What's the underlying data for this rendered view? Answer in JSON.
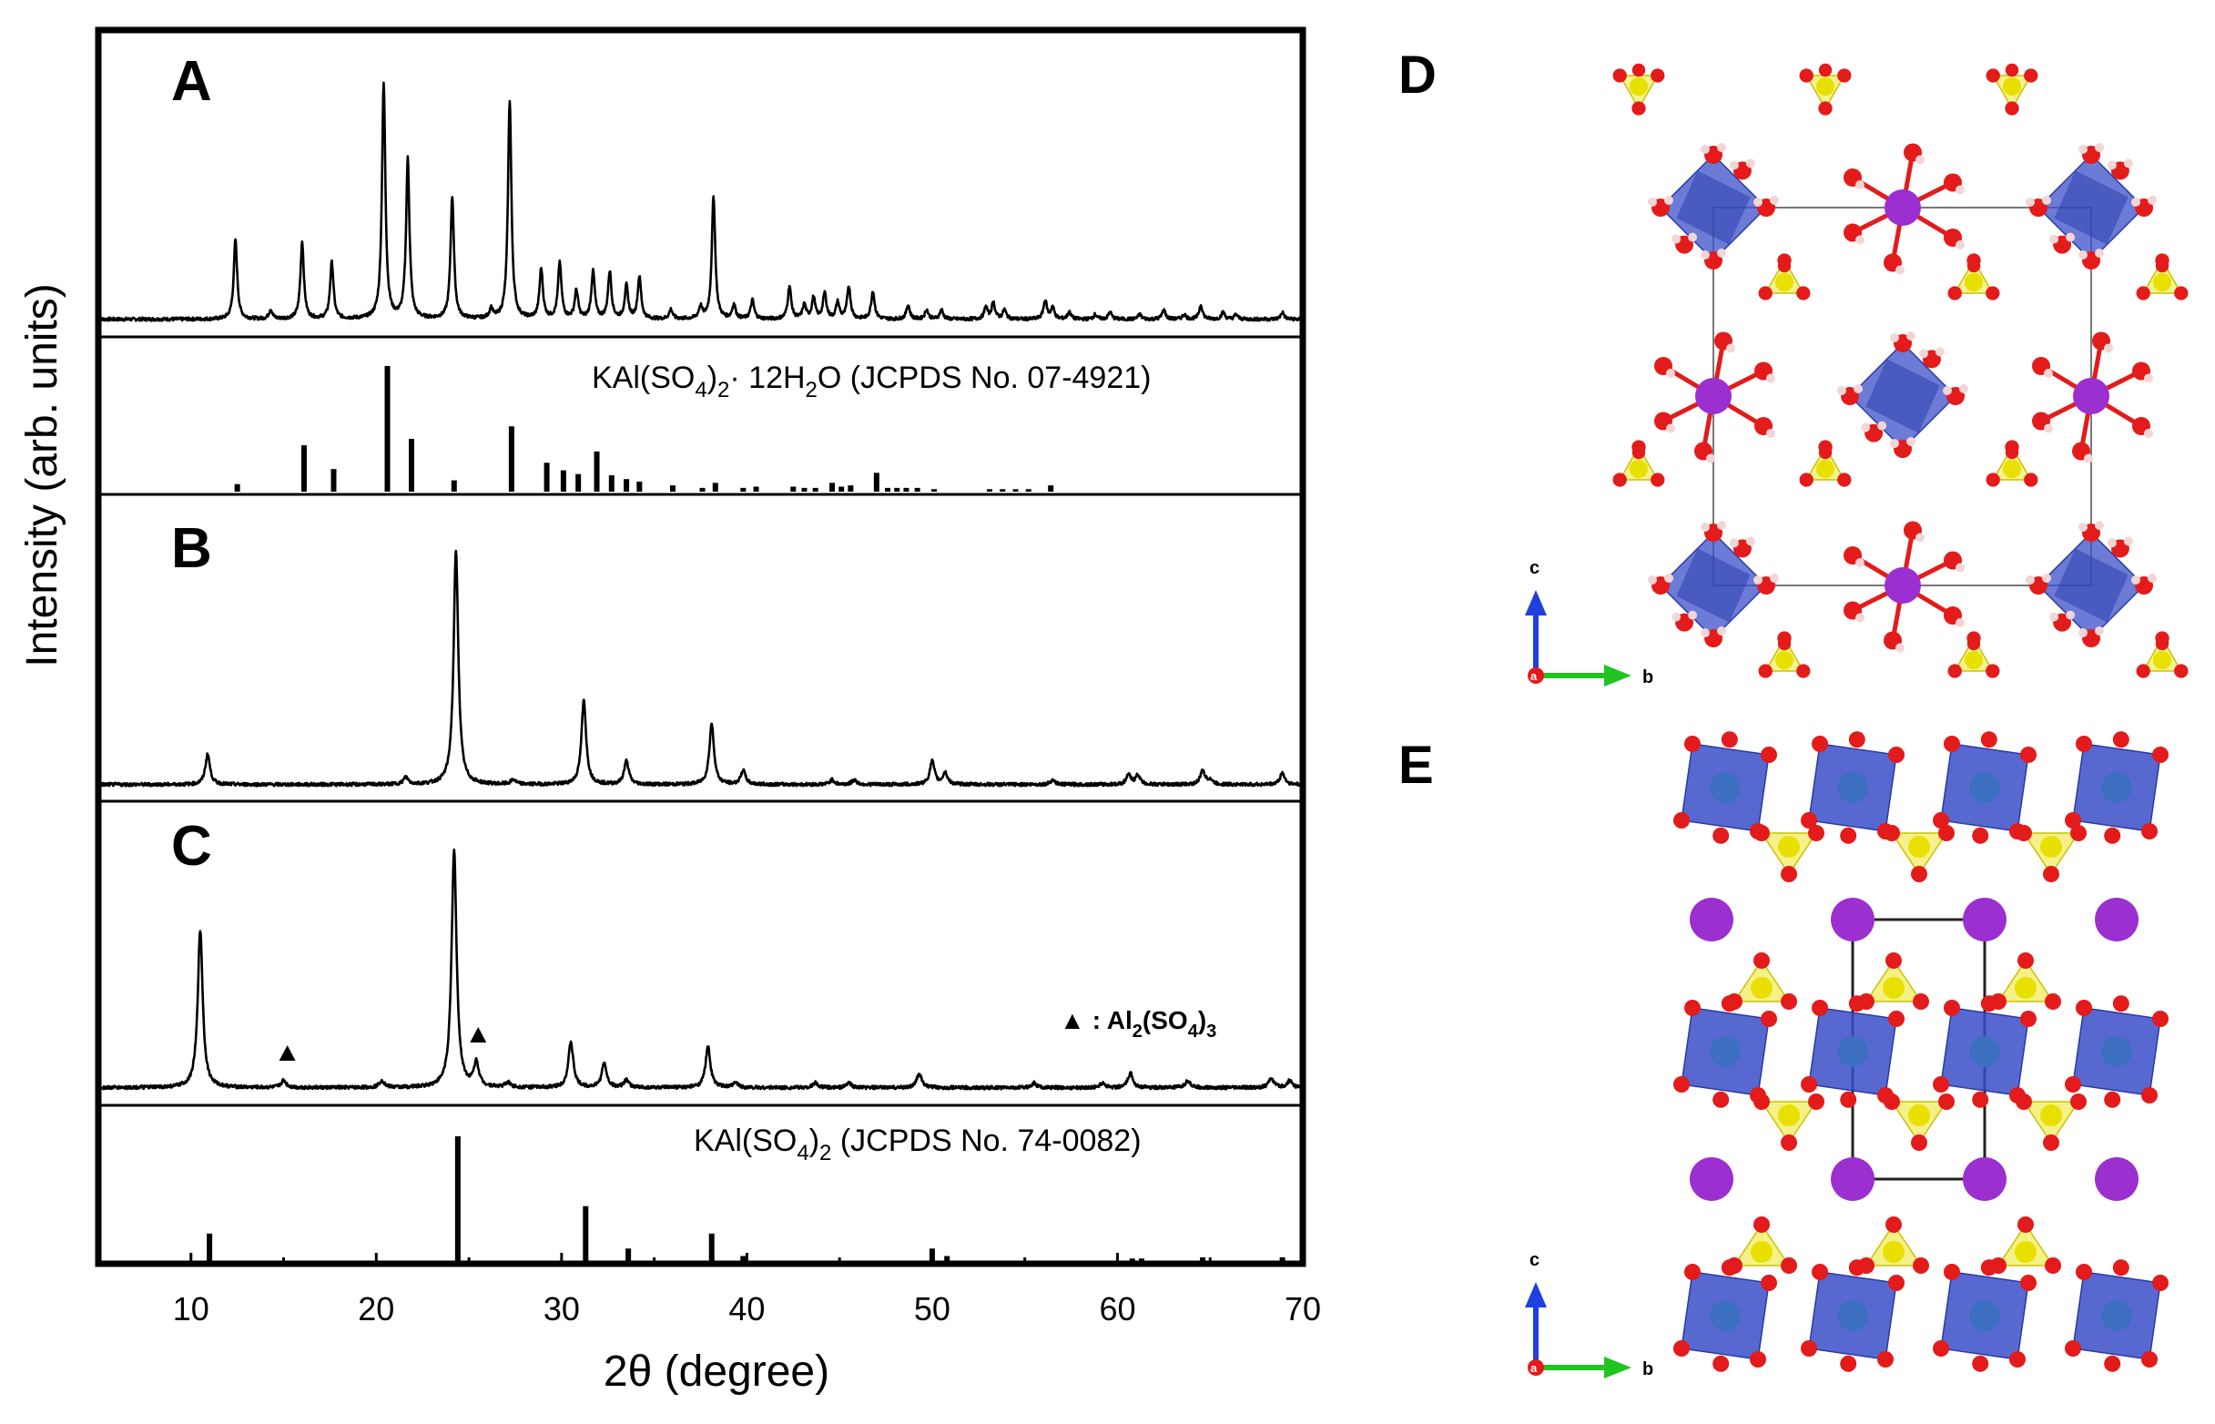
{
  "panel_letters": {
    "A": "A",
    "B": "B",
    "C": "C",
    "D": "D",
    "E": "E"
  },
  "axes": {
    "xlabel": "2θ (degree)",
    "ylabel": "Intensity (arb. units)",
    "xlim": [
      5,
      70
    ],
    "xticks": [
      "10",
      "20",
      "30",
      "40",
      "50",
      "60",
      "70"
    ]
  },
  "reference_labels": {
    "ref_A": {
      "pre": "KAl(SO",
      "sub1": "4",
      "mid": ")",
      "sub2": "2",
      "post": "·   12H",
      "sub3": "2",
      "tail": "O (JCPDS No. 07-4921)"
    },
    "ref_C": {
      "pre": "KAl(SO",
      "sub1": "4",
      "mid": ")",
      "sub2": "2",
      "tail": " (JCPDS No. 74-0082)"
    }
  },
  "impurity_legend": {
    "marker": "▲",
    "pre": ": Al",
    "sub1": "2",
    "mid": "(SO",
    "sub2": "4",
    "post": ")",
    "sub3": "3"
  },
  "axis_glyphs": {
    "c": "c",
    "b": "b",
    "a": "a"
  },
  "colors": {
    "frame": "#000000",
    "oxygen": "#e31b1b",
    "sulfur": "#e8e000",
    "tetra_fill": "#f2ee6a",
    "octa_fill": "#3a4fc8",
    "potassium": "#9b2fd0",
    "aluminum_ball": "#3d6fc0",
    "hydrogen": "#f2d6d6",
    "axis_c": "#1f3fe0",
    "axis_b": "#22c422"
  },
  "chart_data": [
    {
      "type": "line",
      "title": "A",
      "xlabel": "2θ (degree)",
      "ylabel": "Intensity (arb. units)",
      "xlim": [
        5,
        70
      ],
      "ylim": [
        0,
        100
      ],
      "series": [
        {
          "name": "A (measured)",
          "peaks": [
            [
              12.4,
              34
            ],
            [
              14.3,
              4
            ],
            [
              16.0,
              33
            ],
            [
              17.6,
              24
            ],
            [
              20.4,
              100
            ],
            [
              21.7,
              68
            ],
            [
              24.1,
              52
            ],
            [
              26.2,
              4
            ],
            [
              27.2,
              93
            ],
            [
              28.9,
              21
            ],
            [
              29.9,
              24
            ],
            [
              30.8,
              12
            ],
            [
              31.7,
              20
            ],
            [
              32.6,
              20
            ],
            [
              33.5,
              14
            ],
            [
              34.2,
              18
            ],
            [
              35.9,
              4
            ],
            [
              37.5,
              5
            ],
            [
              38.2,
              52
            ],
            [
              39.3,
              6
            ],
            [
              40.3,
              8
            ],
            [
              42.3,
              14
            ],
            [
              43.1,
              6
            ],
            [
              43.6,
              9
            ],
            [
              44.2,
              11
            ],
            [
              44.9,
              7
            ],
            [
              45.5,
              14
            ],
            [
              46.8,
              12
            ],
            [
              48.7,
              6
            ],
            [
              49.7,
              4
            ],
            [
              50.5,
              4
            ],
            [
              52.9,
              5
            ],
            [
              53.3,
              7
            ],
            [
              53.9,
              4
            ],
            [
              56.1,
              8
            ],
            [
              56.5,
              5
            ],
            [
              57.4,
              3
            ],
            [
              58.8,
              2
            ],
            [
              59.6,
              3
            ],
            [
              61.2,
              2
            ],
            [
              62.5,
              4
            ],
            [
              63.6,
              2
            ],
            [
              64.5,
              6
            ],
            [
              65.7,
              3
            ],
            [
              66.4,
              2
            ],
            [
              68.9,
              3
            ]
          ]
        }
      ]
    },
    {
      "type": "bar",
      "title": "KAl(SO4)2·12H2O (JCPDS No. 07-4921)",
      "xlim": [
        5,
        70
      ],
      "ylim": [
        0,
        100
      ],
      "series": [
        {
          "name": "JCPDS 07-4921",
          "x": [
            12.5,
            16.1,
            17.7,
            20.6,
            21.9,
            24.2,
            27.3,
            29.2,
            30.1,
            30.9,
            31.9,
            32.7,
            33.5,
            34.2,
            36.0,
            37.6,
            38.3,
            39.8,
            40.5,
            42.5,
            43.1,
            43.7,
            44.6,
            45.1,
            45.6,
            47.0,
            47.6,
            48.1,
            48.6,
            49.2,
            50.1,
            53.1,
            53.8,
            54.5,
            55.2,
            56.4
          ],
          "values": [
            6,
            37,
            18,
            100,
            42,
            9,
            52,
            23,
            17,
            14,
            32,
            13,
            10,
            8,
            5,
            3,
            7,
            3,
            4,
            4,
            3,
            3,
            7,
            4,
            5,
            15,
            3,
            3,
            3,
            3,
            2,
            2,
            2,
            2,
            2,
            5
          ]
        }
      ]
    },
    {
      "type": "line",
      "title": "B",
      "xlim": [
        5,
        70
      ],
      "ylim": [
        0,
        100
      ],
      "series": [
        {
          "name": "B (measured)",
          "peaks": [
            [
              10.9,
              13
            ],
            [
              21.6,
              3
            ],
            [
              24.3,
              100
            ],
            [
              27.4,
              2
            ],
            [
              31.2,
              36
            ],
            [
              33.5,
              10
            ],
            [
              38.1,
              26
            ],
            [
              39.8,
              6
            ],
            [
              44.6,
              2
            ],
            [
              45.8,
              2
            ],
            [
              50.0,
              10
            ],
            [
              50.7,
              5
            ],
            [
              56.5,
              2
            ],
            [
              60.6,
              4
            ],
            [
              61.1,
              4
            ],
            [
              64.6,
              6
            ],
            [
              65.0,
              2
            ],
            [
              68.9,
              5
            ]
          ]
        }
      ]
    },
    {
      "type": "line",
      "title": "C",
      "xlim": [
        5,
        70
      ],
      "ylim": [
        0,
        100
      ],
      "series": [
        {
          "name": "C (measured)",
          "peaks": [
            [
              10.5,
              66
            ],
            [
              15.0,
              3
            ],
            [
              20.3,
              3
            ],
            [
              24.2,
              100
            ],
            [
              25.4,
              10
            ],
            [
              27.1,
              2
            ],
            [
              30.5,
              19
            ],
            [
              32.3,
              10
            ],
            [
              33.5,
              3
            ],
            [
              37.9,
              17
            ],
            [
              39.4,
              2
            ],
            [
              43.7,
              2
            ],
            [
              45.5,
              2
            ],
            [
              49.3,
              6
            ],
            [
              55.5,
              2
            ],
            [
              59.2,
              2
            ],
            [
              60.7,
              6
            ],
            [
              63.8,
              3
            ],
            [
              68.3,
              4
            ],
            [
              69.3,
              3
            ]
          ]
        }
      ],
      "annotations": [
        {
          "marker": "▲",
          "x": 15.2,
          "label": "Al2(SO4)3"
        },
        {
          "marker": "▲",
          "x": 25.5,
          "label": "Al2(SO4)3"
        }
      ]
    },
    {
      "type": "bar",
      "title": "KAl(SO4)2 (JCPDS No. 74-0082)",
      "xlim": [
        5,
        70
      ],
      "ylim": [
        0,
        100
      ],
      "series": [
        {
          "name": "JCPDS 74-0082",
          "x": [
            11.0,
            24.4,
            31.3,
            33.6,
            38.1,
            39.8,
            50.0,
            50.8,
            60.8,
            61.3,
            64.6,
            68.9
          ],
          "values": [
            22,
            100,
            44,
            10,
            22,
            4,
            10,
            4,
            2,
            2,
            3,
            3
          ]
        }
      ]
    }
  ]
}
